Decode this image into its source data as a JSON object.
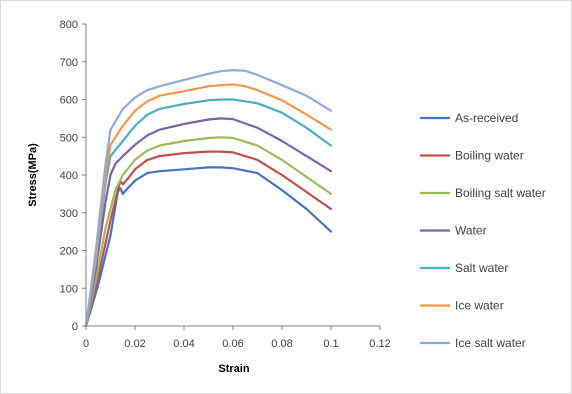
{
  "chart_data": {
    "type": "line",
    "xlabel": "Strain",
    "ylabel": "Stress(MPa)",
    "xlim": [
      0,
      0.12
    ],
    "ylim": [
      0,
      800
    ],
    "xticks": [
      0,
      0.02,
      0.04,
      0.06,
      0.08,
      0.1,
      0.12
    ],
    "xtick_labels": [
      "0",
      "0.02",
      "0.04",
      "0.06",
      "0.08",
      "0.1",
      "0.12"
    ],
    "yticks": [
      0,
      100,
      200,
      300,
      400,
      500,
      600,
      700,
      800
    ],
    "ytick_labels": [
      "0",
      "100",
      "200",
      "300",
      "400",
      "500",
      "600",
      "700",
      "800"
    ],
    "grid": false,
    "legend_position": "right",
    "series": [
      {
        "name": "As-received",
        "color": "#4472C4",
        "points": [
          [
            0,
            0
          ],
          [
            0.005,
            110
          ],
          [
            0.01,
            240
          ],
          [
            0.013,
            355
          ],
          [
            0.014,
            365
          ],
          [
            0.015,
            350
          ],
          [
            0.017,
            365
          ],
          [
            0.02,
            385
          ],
          [
            0.025,
            405
          ],
          [
            0.03,
            410
          ],
          [
            0.04,
            415
          ],
          [
            0.05,
            420
          ],
          [
            0.055,
            420
          ],
          [
            0.06,
            418
          ],
          [
            0.07,
            405
          ],
          [
            0.08,
            360
          ],
          [
            0.09,
            310
          ],
          [
            0.1,
            250
          ]
        ]
      },
      {
        "name": "Boiling water",
        "color": "#C0504D",
        "points": [
          [
            0,
            0
          ],
          [
            0.005,
            130
          ],
          [
            0.01,
            280
          ],
          [
            0.014,
            385
          ],
          [
            0.015,
            375
          ],
          [
            0.017,
            390
          ],
          [
            0.02,
            415
          ],
          [
            0.025,
            440
          ],
          [
            0.03,
            450
          ],
          [
            0.04,
            458
          ],
          [
            0.05,
            462
          ],
          [
            0.055,
            462
          ],
          [
            0.06,
            460
          ],
          [
            0.07,
            440
          ],
          [
            0.08,
            400
          ],
          [
            0.09,
            355
          ],
          [
            0.1,
            310
          ]
        ]
      },
      {
        "name": "Boiling salt water",
        "color": "#9BBB59",
        "points": [
          [
            0,
            0
          ],
          [
            0.004,
            120
          ],
          [
            0.008,
            260
          ],
          [
            0.012,
            360
          ],
          [
            0.015,
            400
          ],
          [
            0.02,
            440
          ],
          [
            0.025,
            465
          ],
          [
            0.03,
            478
          ],
          [
            0.04,
            490
          ],
          [
            0.05,
            498
          ],
          [
            0.055,
            500
          ],
          [
            0.06,
            498
          ],
          [
            0.07,
            478
          ],
          [
            0.08,
            440
          ],
          [
            0.09,
            395
          ],
          [
            0.1,
            350
          ]
        ]
      },
      {
        "name": "Water",
        "color": "#7F5FA8",
        "points": [
          [
            0,
            0
          ],
          [
            0.004,
            150
          ],
          [
            0.008,
            330
          ],
          [
            0.01,
            400
          ],
          [
            0.012,
            430
          ],
          [
            0.015,
            450
          ],
          [
            0.02,
            480
          ],
          [
            0.025,
            505
          ],
          [
            0.03,
            520
          ],
          [
            0.04,
            535
          ],
          [
            0.05,
            547
          ],
          [
            0.055,
            550
          ],
          [
            0.06,
            548
          ],
          [
            0.07,
            525
          ],
          [
            0.08,
            490
          ],
          [
            0.09,
            450
          ],
          [
            0.1,
            410
          ]
        ]
      },
      {
        "name": "Salt water",
        "color": "#4BACC6",
        "points": [
          [
            0,
            0
          ],
          [
            0.004,
            170
          ],
          [
            0.008,
            380
          ],
          [
            0.01,
            450
          ],
          [
            0.015,
            490
          ],
          [
            0.02,
            530
          ],
          [
            0.025,
            560
          ],
          [
            0.03,
            575
          ],
          [
            0.04,
            588
          ],
          [
            0.05,
            598
          ],
          [
            0.055,
            600
          ],
          [
            0.06,
            600
          ],
          [
            0.07,
            590
          ],
          [
            0.08,
            565
          ],
          [
            0.09,
            525
          ],
          [
            0.1,
            478
          ]
        ]
      },
      {
        "name": "Ice water",
        "color": "#F79646",
        "points": [
          [
            0,
            0
          ],
          [
            0.004,
            180
          ],
          [
            0.008,
            400
          ],
          [
            0.01,
            480
          ],
          [
            0.015,
            530
          ],
          [
            0.02,
            570
          ],
          [
            0.025,
            595
          ],
          [
            0.03,
            610
          ],
          [
            0.04,
            622
          ],
          [
            0.05,
            635
          ],
          [
            0.055,
            638
          ],
          [
            0.06,
            640
          ],
          [
            0.065,
            635
          ],
          [
            0.07,
            625
          ],
          [
            0.08,
            598
          ],
          [
            0.09,
            560
          ],
          [
            0.1,
            520
          ]
        ]
      },
      {
        "name": "Ice  salt water",
        "color": "#8EA9DB",
        "points": [
          [
            0,
            0
          ],
          [
            0.004,
            200
          ],
          [
            0.008,
            430
          ],
          [
            0.01,
            520
          ],
          [
            0.015,
            575
          ],
          [
            0.02,
            605
          ],
          [
            0.025,
            625
          ],
          [
            0.03,
            635
          ],
          [
            0.04,
            652
          ],
          [
            0.05,
            668
          ],
          [
            0.055,
            675
          ],
          [
            0.06,
            678
          ],
          [
            0.065,
            676
          ],
          [
            0.07,
            665
          ],
          [
            0.08,
            638
          ],
          [
            0.09,
            610
          ],
          [
            0.1,
            570
          ]
        ]
      }
    ]
  }
}
